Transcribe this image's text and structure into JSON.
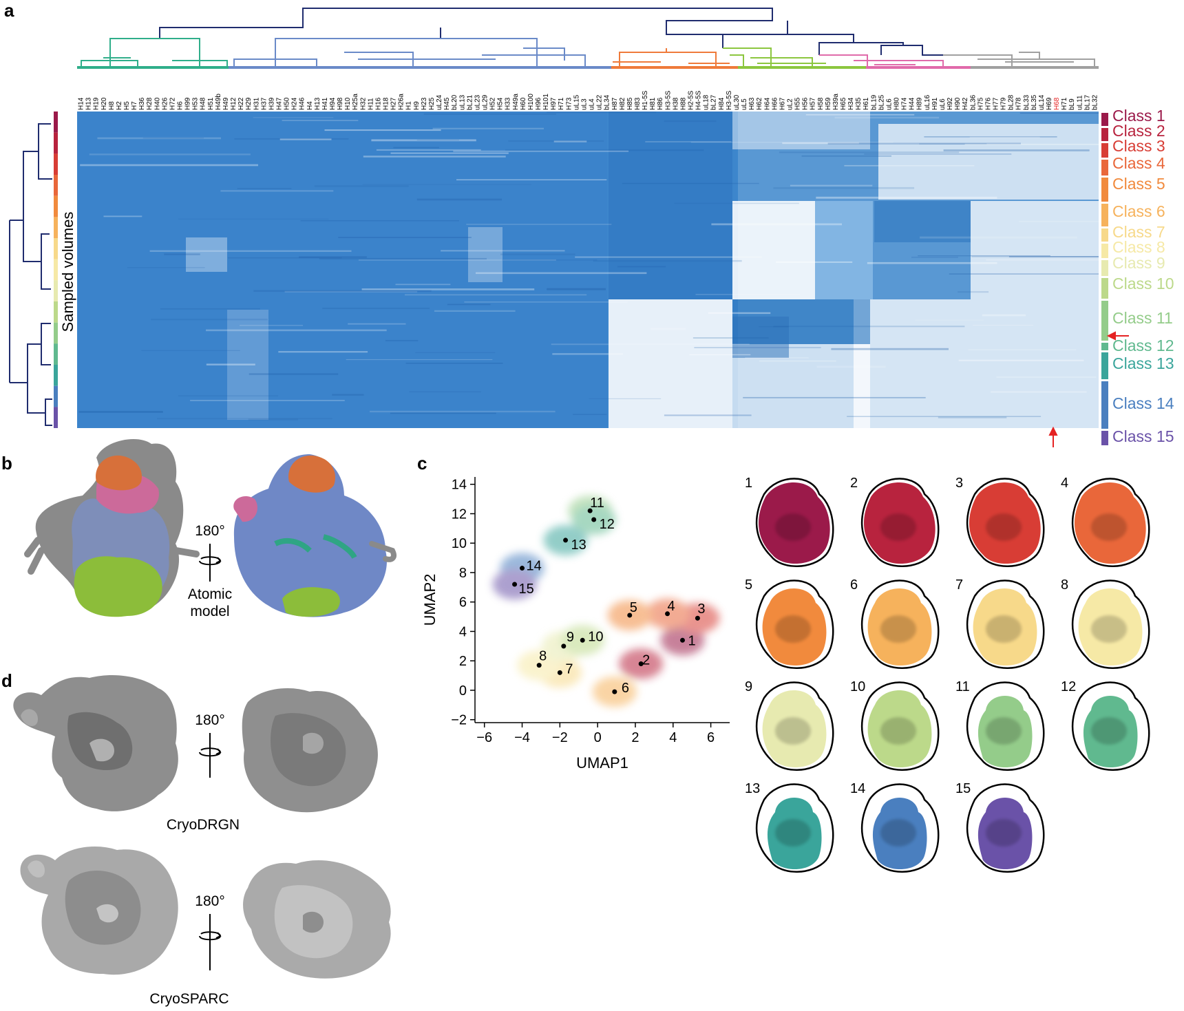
{
  "panels": {
    "a": "a",
    "b": "b",
    "c": "c",
    "d": "d"
  },
  "heatmap": {
    "ylabel": "Sampled volumes",
    "columns": [
      "H14",
      "H13",
      "H19",
      "H20",
      "H8",
      "H2",
      "H5",
      "H7",
      "H36",
      "H28",
      "H40",
      "H26",
      "H72",
      "H6",
      "H99",
      "H53",
      "H48",
      "H51",
      "H49b",
      "H49",
      "H12",
      "H22",
      "H29",
      "H31",
      "H37",
      "H39",
      "H47",
      "H50",
      "H24",
      "H46",
      "H4",
      "H13",
      "H41",
      "H94",
      "H98",
      "H10",
      "H25a",
      "H32",
      "H11",
      "H16",
      "H18",
      "H27",
      "H26a",
      "H1",
      "H9",
      "H23",
      "H25",
      "uL24",
      "H45",
      "bL20",
      "uL13",
      "bL21",
      "uL23",
      "uL29",
      "H52",
      "H54",
      "H33",
      "H49a",
      "H60",
      "H100",
      "H96",
      "H101",
      "H97",
      "H71",
      "H73",
      "uL15",
      "uL3",
      "uL4",
      "uL22",
      "bL34",
      "H87",
      "H82",
      "H85",
      "H83",
      "H1-5S",
      "H81",
      "H86",
      "H3-5S",
      "H38",
      "H88",
      "H2-5S",
      "H4-5S",
      "uL18",
      "bL27",
      "H84",
      "H3-5S",
      "uL30",
      "uL5",
      "H63",
      "H62",
      "H64",
      "H66",
      "H67",
      "uL2",
      "H55",
      "H56",
      "H57",
      "H58",
      "H59",
      "H39a",
      "H65",
      "H34",
      "H35",
      "H61",
      "bL19",
      "bL25",
      "uL6",
      "H80",
      "H74",
      "H44",
      "H89",
      "uL16",
      "H91",
      "uL6",
      "H92",
      "H90",
      "H42",
      "bL36",
      "H75",
      "H76",
      "H77",
      "H79",
      "bL28",
      "H78",
      "bL33",
      "bL35",
      "uL14",
      "H69",
      "H68",
      "H71",
      "bL9",
      "uL11",
      "bL17",
      "bL32"
    ],
    "highlight_column": "H68",
    "classes": [
      "Class 1",
      "Class 2",
      "Class 3",
      "Class 4",
      "Class 5",
      "Class 6",
      "Class 7",
      "Class 8",
      "Class 9",
      "Class 10",
      "Class 11",
      "Class 12",
      "Class 13",
      "Class 14",
      "Class 15"
    ],
    "class_colors": [
      "#9b1a4a",
      "#b8233e",
      "#d83d35",
      "#e9673a",
      "#f18a3d",
      "#f6b25c",
      "#f7d98a",
      "#f6e9a6",
      "#e7eab0",
      "#bcd98a",
      "#94cc8a",
      "#60b98f",
      "#3aa59b",
      "#4a7fbf",
      "#6a52a8"
    ],
    "arrow_class": "Class 11"
  },
  "panel_b": {
    "rotation": "180°",
    "caption_line1": "Atomic",
    "caption_line2": "model"
  },
  "umap": {
    "xlabel": "UMAP1",
    "ylabel": "UMAP2",
    "xticks": [
      "−6",
      "−4",
      "−2",
      "0",
      "2",
      "4",
      "6"
    ],
    "yticks": [
      "−2",
      "0",
      "2",
      "4",
      "6",
      "8",
      "10",
      "12",
      "14"
    ],
    "xlim": [
      -6.5,
      7
    ],
    "ylim": [
      -2.2,
      14.5
    ],
    "points": [
      {
        "label": "1",
        "x": 4.5,
        "y": 3.4
      },
      {
        "label": "2",
        "x": 2.3,
        "y": 1.8
      },
      {
        "label": "3",
        "x": 5.3,
        "y": 4.9
      },
      {
        "label": "4",
        "x": 3.7,
        "y": 5.2
      },
      {
        "label": "5",
        "x": 1.7,
        "y": 5.1
      },
      {
        "label": "6",
        "x": 0.9,
        "y": -0.1
      },
      {
        "label": "7",
        "x": -2.0,
        "y": 1.2
      },
      {
        "label": "8",
        "x": -3.1,
        "y": 1.7
      },
      {
        "label": "9",
        "x": -1.8,
        "y": 3.0
      },
      {
        "label": "10",
        "x": -0.8,
        "y": 3.4
      },
      {
        "label": "11",
        "x": -0.4,
        "y": 12.2
      },
      {
        "label": "12",
        "x": -0.2,
        "y": 11.6
      },
      {
        "label": "13",
        "x": -1.7,
        "y": 10.2
      },
      {
        "label": "14",
        "x": -4.0,
        "y": 8.3
      },
      {
        "label": "15",
        "x": -4.4,
        "y": 7.2
      }
    ],
    "volume_labels": [
      "1",
      "2",
      "3",
      "4",
      "5",
      "6",
      "7",
      "8",
      "9",
      "10",
      "11",
      "12",
      "13",
      "14",
      "15"
    ]
  },
  "panel_d": {
    "rotation_top": "180°",
    "caption_top": "CryoDRGN",
    "rotation_bottom": "180°",
    "caption_bottom": "CryoSPARC"
  }
}
